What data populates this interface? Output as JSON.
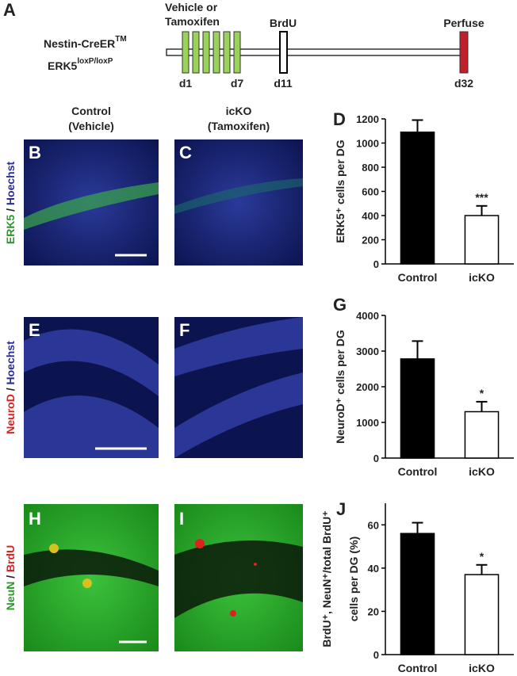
{
  "figure": {
    "panel_labels": [
      "A",
      "B",
      "C",
      "D",
      "E",
      "F",
      "G",
      "H",
      "I",
      "J"
    ],
    "timeline": {
      "genotype": [
        {
          "text": "Nestin-CreER",
          "sup": "TM"
        },
        {
          "text": "ERK5",
          "sup": "loxP/loxP"
        }
      ],
      "treatment": [
        "Vehicle or",
        "Tamoxifen"
      ],
      "brdu": "BrdU",
      "perfuse": "Perfuse",
      "days": [
        "d1",
        "d7",
        "d11",
        "d32"
      ]
    },
    "columns": [
      [
        "Control",
        "(Vehicle)"
      ],
      [
        "icKO",
        "(Tamoxifen)"
      ]
    ],
    "stains": [
      [
        "ERK5",
        " / ",
        "Hoechst"
      ],
      [
        "NeuroD",
        " / ",
        "Hoechst"
      ],
      [
        "NeuN",
        " / ",
        "BrdU"
      ]
    ]
  },
  "chart_data": [
    {
      "type": "bar",
      "ylabel": "ERK5⁺ cells per DG",
      "categories": [
        "Control",
        "icKO"
      ],
      "values": [
        1090,
        400
      ],
      "errors": [
        100,
        80
      ],
      "colors": [
        "#000000",
        "#ffffff"
      ],
      "significance": [
        null,
        "***"
      ],
      "ylim": [
        0,
        1200
      ],
      "yticks": [
        0,
        200,
        400,
        600,
        800,
        1000,
        1200
      ]
    },
    {
      "type": "bar",
      "ylabel": "NeuroD⁺ cells per DG",
      "categories": [
        "Control",
        "icKO"
      ],
      "values": [
        2780,
        1300
      ],
      "errors": [
        500,
        280
      ],
      "colors": [
        "#000000",
        "#ffffff"
      ],
      "significance": [
        null,
        "*"
      ],
      "ylim": [
        0,
        4000
      ],
      "yticks": [
        0,
        1000,
        2000,
        3000,
        4000
      ]
    },
    {
      "type": "bar",
      "ylabel": [
        "BrdU⁺, NeuN⁺/total BrdU⁺",
        "cells per DG (%)"
      ],
      "categories": [
        "Control",
        "icKO"
      ],
      "values": [
        56,
        37
      ],
      "errors": [
        5,
        4.5
      ],
      "colors": [
        "#000000",
        "#ffffff"
      ],
      "significance": [
        null,
        "*"
      ],
      "ylim": [
        0,
        70
      ],
      "yticks": [
        0,
        20,
        40,
        60
      ]
    }
  ]
}
